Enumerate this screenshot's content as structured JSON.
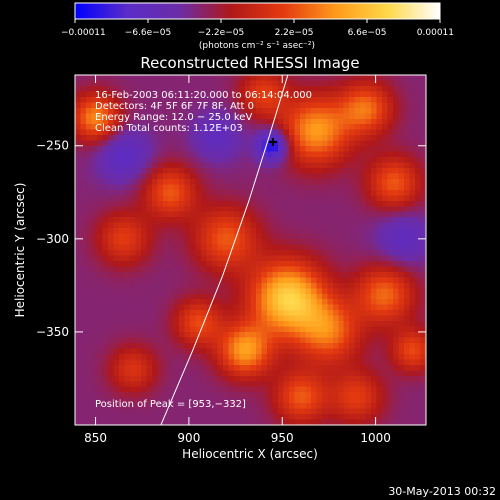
{
  "chart_data": {
    "type": "heatmap",
    "title": "Reconstructed RHESSI Image",
    "xlabel": "Heliocentric X (arcsec)",
    "ylabel": "Heliocentric Y (arcsec)",
    "xlim": [
      839,
      1027
    ],
    "ylim": [
      -400,
      -212
    ],
    "x_ticks": [
      850,
      900,
      950,
      1000
    ],
    "y_ticks": [
      -250,
      -300,
      -350
    ],
    "x_tick_labels": [
      "850",
      "900",
      "950",
      "1000"
    ],
    "y_tick_labels": [
      "−250",
      "−300",
      "−350"
    ],
    "grid": false,
    "annotations": [
      "16-Feb-2003 06:11:20.000 to 06:14:04.000",
      "Detectors: 4F 5F 6F 7F 8F, Att 0",
      "Energy Range: 12.0 − 25.0 keV",
      "Clean    Total counts: 1.12E+03"
    ],
    "peak_label": "Position of Peak = [953,−332]",
    "peak": [
      953,
      -332
    ],
    "secondary_marker": [
      945,
      -248
    ],
    "colorbar": {
      "min": -0.00011,
      "max": 0.00011,
      "tick_values": [
        -0.00011,
        -6.6e-05,
        -2.2e-05,
        2.2e-05,
        6.6e-05,
        0.00011
      ],
      "tick_labels": [
        "−0.00011",
        "−6.6e−05",
        "−2.2e−05",
        "2.2e−05",
        "6.6e−05",
        "0.00011"
      ],
      "unit_text": "(photons cm⁻² s⁻¹ asec⁻²)",
      "colors": [
        "#0000ff",
        "#5a2cc8",
        "#6b2ca8",
        "#b01818",
        "#e43a10",
        "#ff9a1a",
        "#ffd84a",
        "#ffffff"
      ]
    },
    "limb_curve": [
      [
        885,
        -400
      ],
      [
        902,
        -360
      ],
      [
        918,
        -320
      ],
      [
        932,
        -280
      ],
      [
        943,
        -245
      ],
      [
        953,
        -212
      ]
    ],
    "sources": [
      {
        "x": 953,
        "y": -332,
        "amp": 1.0,
        "sigma": 14
      },
      {
        "x": 930,
        "y": -360,
        "amp": 0.75,
        "sigma": 10
      },
      {
        "x": 975,
        "y": -350,
        "amp": 0.6,
        "sigma": 12
      },
      {
        "x": 905,
        "y": -345,
        "amp": 0.5,
        "sigma": 9
      },
      {
        "x": 920,
        "y": -300,
        "amp": 0.55,
        "sigma": 12
      },
      {
        "x": 890,
        "y": -275,
        "amp": 0.55,
        "sigma": 10
      },
      {
        "x": 865,
        "y": -300,
        "amp": 0.45,
        "sigma": 10
      },
      {
        "x": 850,
        "y": -235,
        "amp": 0.7,
        "sigma": 9
      },
      {
        "x": 968,
        "y": -242,
        "amp": 0.75,
        "sigma": 13
      },
      {
        "x": 995,
        "y": -230,
        "amp": 0.6,
        "sigma": 10
      },
      {
        "x": 1010,
        "y": -270,
        "amp": 0.55,
        "sigma": 10
      },
      {
        "x": 1005,
        "y": -330,
        "amp": 0.6,
        "sigma": 11
      },
      {
        "x": 990,
        "y": -385,
        "amp": 0.45,
        "sigma": 10
      },
      {
        "x": 960,
        "y": -385,
        "amp": 0.55,
        "sigma": 10
      },
      {
        "x": 870,
        "y": -370,
        "amp": 0.4,
        "sigma": 9
      },
      {
        "x": 1020,
        "y": -360,
        "amp": 0.5,
        "sigma": 8
      },
      {
        "x": 940,
        "y": -222,
        "amp": 0.45,
        "sigma": 9
      },
      {
        "x": 945,
        "y": -250,
        "amp": -0.7,
        "sigma": 6
      },
      {
        "x": 865,
        "y": -255,
        "amp": -0.35,
        "sigma": 10
      },
      {
        "x": 915,
        "y": -245,
        "amp": -0.3,
        "sigma": 9
      },
      {
        "x": 1015,
        "y": -300,
        "amp": -0.3,
        "sigma": 10
      }
    ],
    "background_level": -0.32
  },
  "footer": {
    "timestamp": "30-May-2013 00:32"
  }
}
